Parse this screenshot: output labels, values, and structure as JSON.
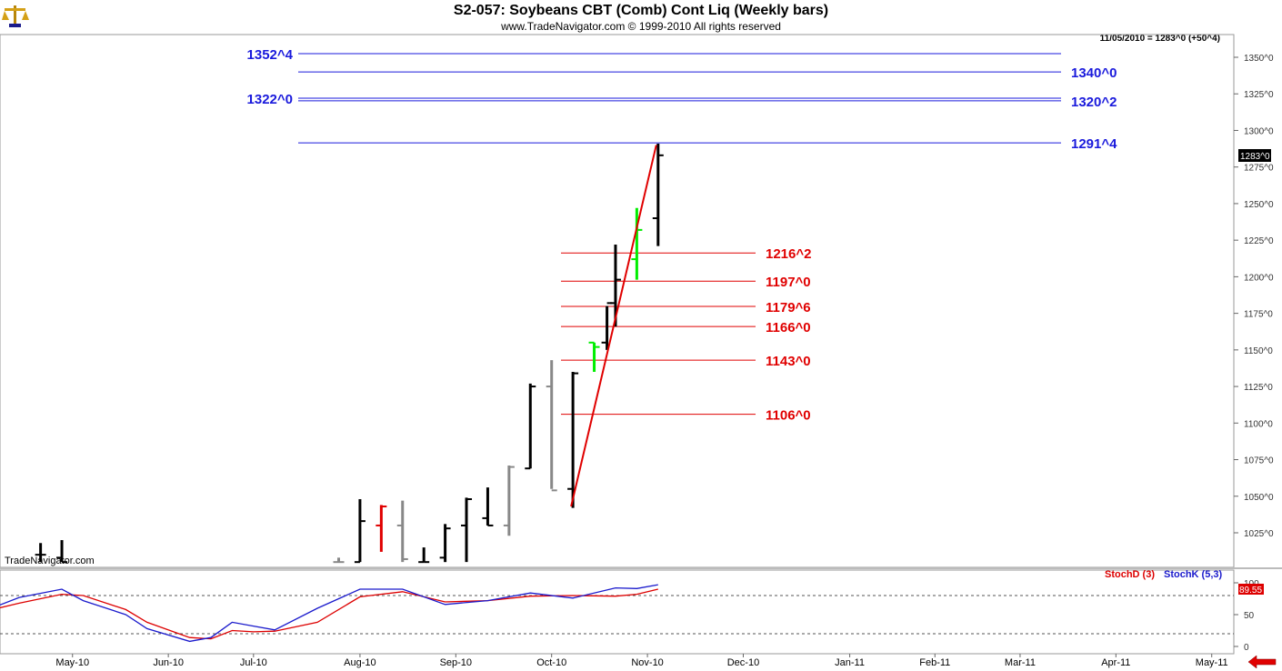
{
  "header": {
    "title": "S2-057:  Soybeans CBT (Comb) Cont Liq  (Weekly bars)",
    "copyright": "www.TradeNavigator.com © 1999-2010 All rights reserved",
    "last_readout": "11/05/2010 = 1283^0 (+50^4)",
    "watermark": "TradeNavigator.com"
  },
  "colors": {
    "blue_level": "#1a1adc",
    "red_level": "#e00000",
    "up_bar": "#000000",
    "down_bar": "#888888",
    "green_bar": "#00ee00",
    "stoch_d": "#dd0000",
    "stoch_k": "#1a1acc"
  },
  "icons": {
    "logo": "balance-scale-icon",
    "nav": "left-arrow-icon"
  },
  "chart_data": {
    "type": "bar",
    "subtype": "ohlc-weekly",
    "title": "S2-057:  Soybeans CBT (Comb) Cont Liq  (Weekly bars)",
    "price_axis": {
      "ylim": [
        1005,
        1360
      ],
      "ticks": [
        "1350^0",
        "1325^0",
        "1300^0",
        "1275^0",
        "1250^0",
        "1225^0",
        "1200^0",
        "1175^0",
        "1150^0",
        "1125^0",
        "1100^0",
        "1075^0",
        "1050^0",
        "1025^0"
      ],
      "tick_values": [
        1350,
        1325,
        1300,
        1275,
        1250,
        1225,
        1200,
        1175,
        1150,
        1125,
        1100,
        1075,
        1050,
        1025
      ],
      "current_price_label": "1283^0",
      "current_price": 1283
    },
    "time_axis": {
      "months": [
        "May-10",
        "Jun-10",
        "Jul-10",
        "Aug-10",
        "Sep-10",
        "Oct-10",
        "Nov-10",
        "Dec-10",
        "Jan-11",
        "Feb-11",
        "Mar-11",
        "Apr-11",
        "May-11"
      ],
      "month_weeks": [
        2.5,
        7.0,
        11.0,
        16.0,
        20.5,
        25.0,
        29.5,
        34.0,
        39.0,
        43.0,
        47.0,
        51.5,
        56.0
      ]
    },
    "bars": [
      {
        "week": 1,
        "open": 1010,
        "high": 1018,
        "low": 1005,
        "close": 1010,
        "color": "up"
      },
      {
        "week": 2,
        "open": 1008,
        "high": 1020,
        "low": 1005,
        "close": 1005,
        "color": "up"
      },
      {
        "week": 15,
        "open": 1005,
        "high": 1008,
        "low": 1005,
        "close": 1005,
        "color": "down"
      },
      {
        "week": 16,
        "open": 1005,
        "high": 1048,
        "low": 1005,
        "close": 1033,
        "color": "up"
      },
      {
        "week": 17,
        "open": 1030,
        "high": 1044,
        "low": 1012,
        "close": 1043,
        "color": "red"
      },
      {
        "week": 18,
        "open": 1030,
        "high": 1047,
        "low": 1005,
        "close": 1007,
        "color": "down"
      },
      {
        "week": 19,
        "open": 1005,
        "high": 1015,
        "low": 1005,
        "close": 1005,
        "color": "up"
      },
      {
        "week": 20,
        "open": 1008,
        "high": 1031,
        "low": 1005,
        "close": 1028,
        "color": "up"
      },
      {
        "week": 21,
        "open": 1030,
        "high": 1049,
        "low": 1005,
        "close": 1048,
        "color": "up"
      },
      {
        "week": 22,
        "open": 1035,
        "high": 1056,
        "low": 1030,
        "close": 1030,
        "color": "up"
      },
      {
        "week": 23,
        "open": 1030,
        "high": 1071,
        "low": 1023,
        "close": 1070,
        "color": "down"
      },
      {
        "week": 24,
        "open": 1069,
        "high": 1127,
        "low": 1069,
        "close": 1125,
        "color": "up"
      },
      {
        "week": 25,
        "open": 1125,
        "high": 1143,
        "low": 1055,
        "close": 1054,
        "color": "down"
      },
      {
        "week": 26,
        "open": 1055,
        "high": 1135,
        "low": 1042,
        "close": 1134,
        "color": "up"
      },
      {
        "week": 27,
        "open": 1155,
        "high": 1155,
        "low": 1135,
        "close": 1152,
        "color": "green"
      },
      {
        "week": 27.6,
        "open": 1155,
        "high": 1180,
        "low": 1150,
        "close": 1182,
        "color": "up"
      },
      {
        "week": 28,
        "open": 1182,
        "high": 1222,
        "low": 1166,
        "close": 1198,
        "color": "up"
      },
      {
        "week": 29,
        "open": 1212,
        "high": 1247,
        "low": 1198,
        "close": 1232,
        "color": "green"
      },
      {
        "week": 30,
        "open": 1240,
        "high": 1291,
        "low": 1221,
        "close": 1283,
        "color": "up"
      }
    ],
    "trendline": {
      "from": {
        "week": 26,
        "price": 1043
      },
      "to": {
        "week": 30,
        "price": 1290
      }
    },
    "blue_levels": [
      {
        "label": "1352^4",
        "value": 1352.5,
        "label_side": "left"
      },
      {
        "label": "1340^0",
        "value": 1340,
        "label_side": "right"
      },
      {
        "label": "1322^0",
        "value": 1322,
        "label_side": "left"
      },
      {
        "label": "1320^2",
        "value": 1320.25,
        "label_side": "right"
      },
      {
        "label": "1291^4",
        "value": 1291.5,
        "label_side": "right"
      }
    ],
    "red_levels": [
      {
        "label": "1216^2",
        "value": 1216.25
      },
      {
        "label": "1197^0",
        "value": 1197
      },
      {
        "label": "1179^6",
        "value": 1179.75
      },
      {
        "label": "1166^0",
        "value": 1166
      },
      {
        "label": "1143^0",
        "value": 1143
      },
      {
        "label": "1106^0",
        "value": 1106
      }
    ],
    "indicator": {
      "legend": [
        {
          "name": "StochD (3)",
          "color": "stoch_d"
        },
        {
          "name": "StochK (5,3)",
          "color": "stoch_k"
        }
      ],
      "ylim": [
        0,
        100
      ],
      "ticks": [
        "100",
        "50",
        "0"
      ],
      "tick_values": [
        100,
        50,
        0
      ],
      "levels": [
        80,
        20
      ],
      "current_label": "89.55",
      "current_value": 89.55,
      "x": [
        -1,
        0,
        2,
        3,
        5,
        6,
        8,
        9,
        10,
        11,
        12,
        14,
        16,
        18,
        20,
        22,
        24,
        26,
        28,
        29,
        30
      ],
      "stoch_d": [
        60,
        68,
        82,
        80,
        58,
        38,
        14,
        12,
        25,
        23,
        24,
        38,
        78,
        86,
        70,
        72,
        79,
        80,
        79,
        82,
        90
      ],
      "stoch_k": [
        64,
        77,
        90,
        72,
        50,
        28,
        8,
        14,
        38,
        32,
        26,
        60,
        90,
        90,
        66,
        72,
        84,
        76,
        92,
        91,
        97
      ]
    }
  }
}
